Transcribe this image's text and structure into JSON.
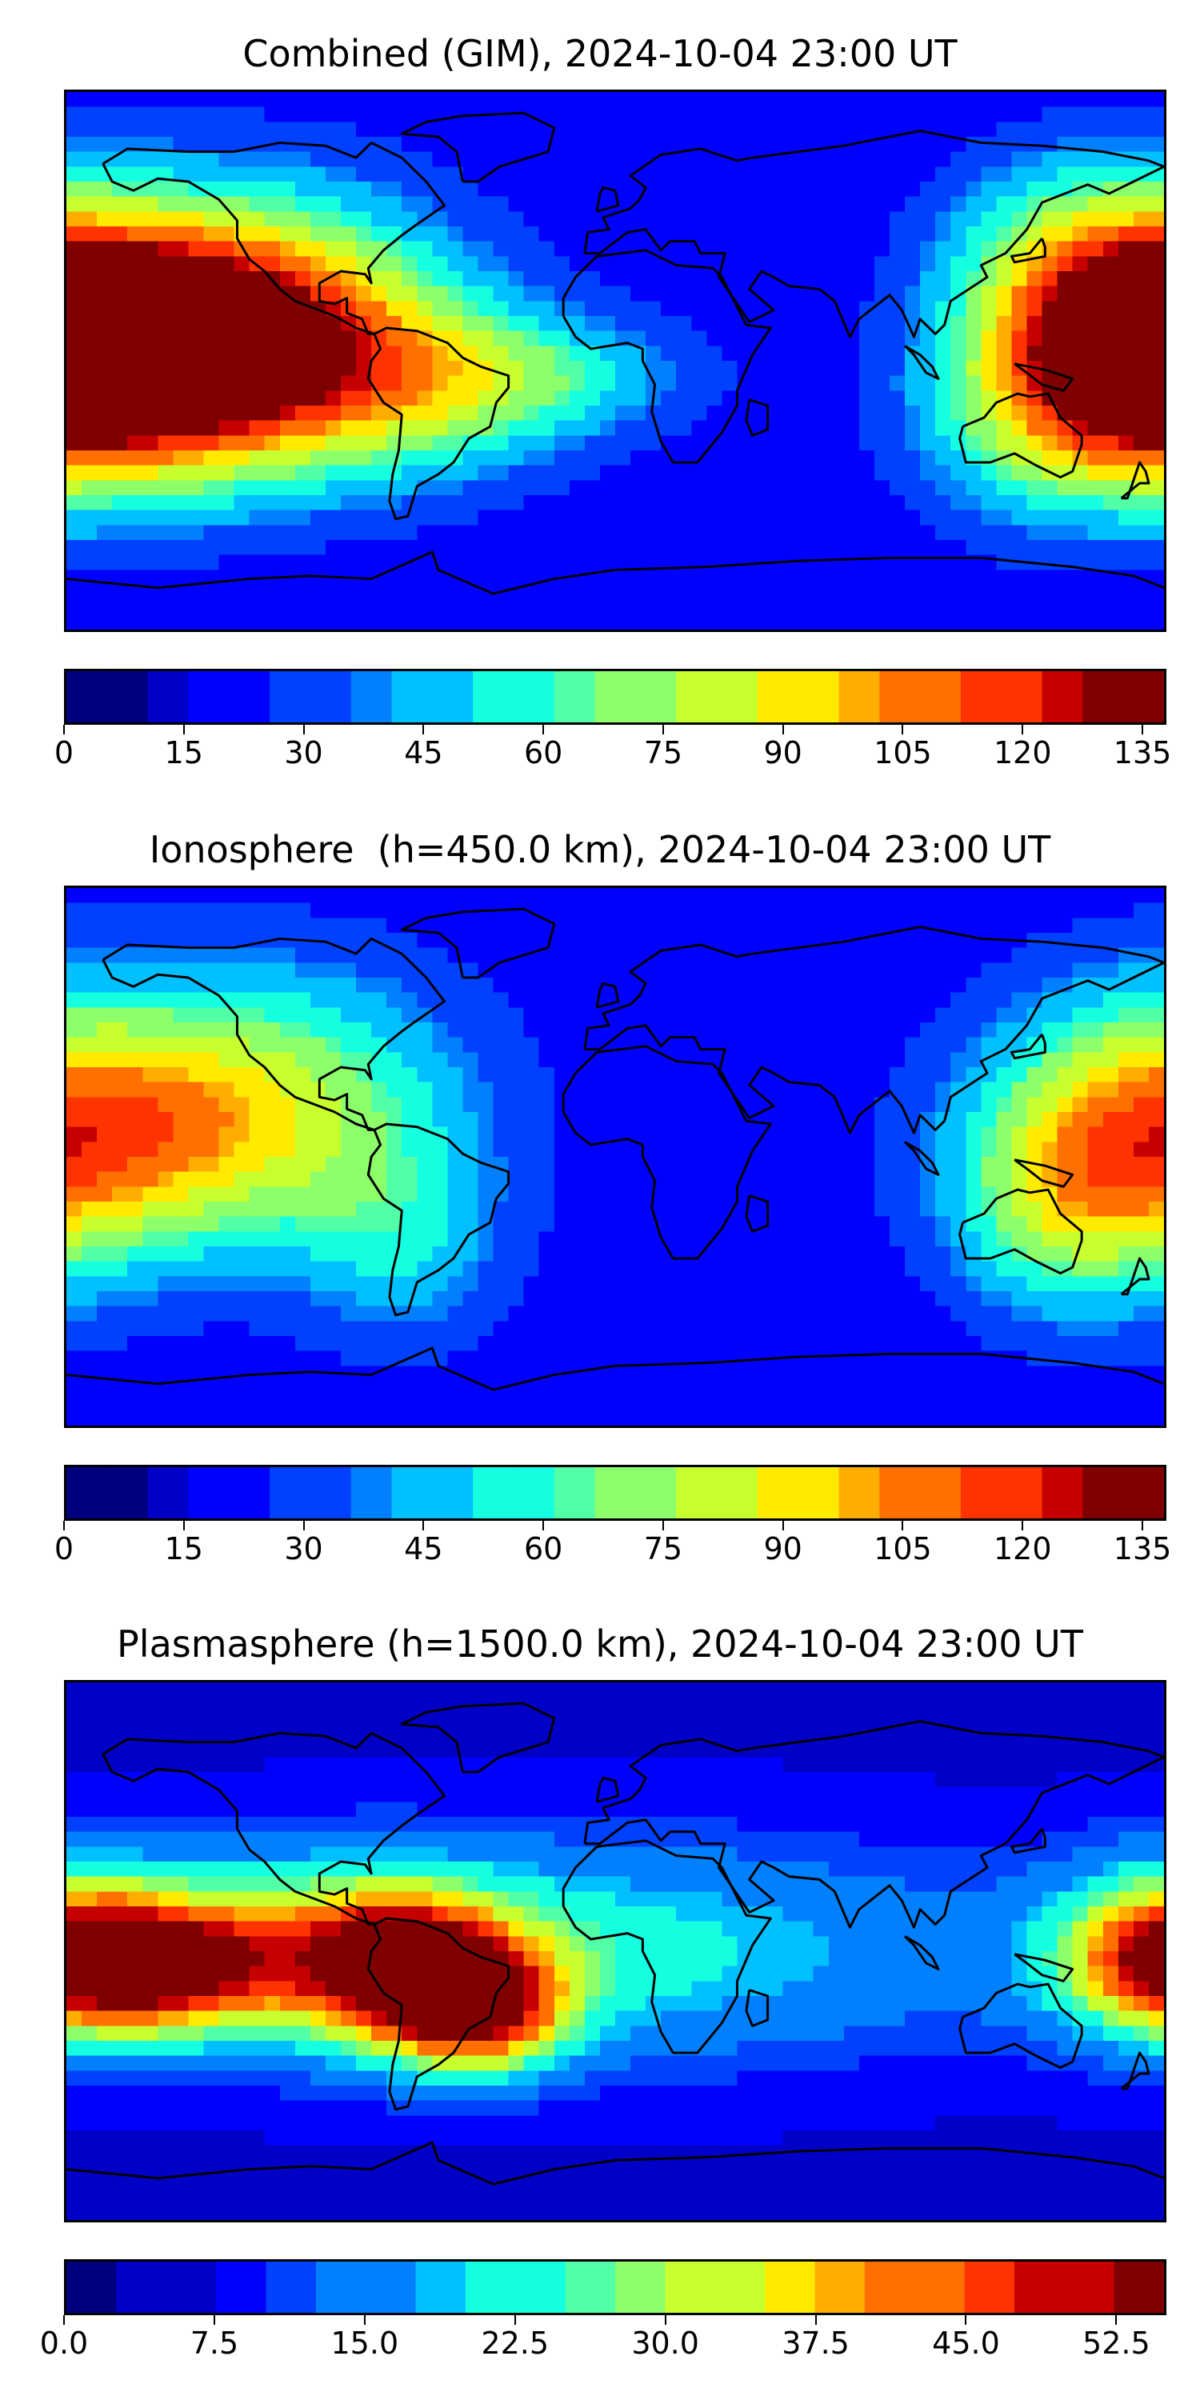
{
  "colormap": [
    "#00007f",
    "#0000c6",
    "#0000ff",
    "#0040ff",
    "#0080ff",
    "#00c0ff",
    "#15ffe1",
    "#50ffa6",
    "#8dff6a",
    "#c8ff2e",
    "#ffea00",
    "#ffad00",
    "#ff7000",
    "#ff3300",
    "#c60000",
    "#7f0000"
  ],
  "coastline_color": "#000000",
  "chart_data": [
    {
      "type": "heatmap",
      "title": "Combined (GIM), 2024-10-04 23:00 UT",
      "quantity_range": [
        0,
        138
      ],
      "colorbar_ticks": [
        "0",
        "15",
        "30",
        "45",
        "60",
        "75",
        "90",
        "105",
        "120",
        "135"
      ],
      "colorbar_tick_values": [
        0,
        15,
        30,
        45,
        60,
        75,
        90,
        105,
        120,
        135
      ],
      "colorbar_levels": 27,
      "background_value": 18,
      "features": [
        {
          "lon": -140,
          "lat": 0,
          "value": 130,
          "spread_lon": 48,
          "spread_lat": 28
        },
        {
          "lon": 175,
          "lat": 5,
          "value": 115,
          "spread_lon": 35,
          "spread_lat": 30
        },
        {
          "lon": -120,
          "lat": 20,
          "value": 75,
          "spread_lon": 45,
          "spread_lat": 30
        },
        {
          "lon": -60,
          "lat": -10,
          "value": 55,
          "spread_lon": 35,
          "spread_lat": 22
        },
        {
          "lon": -20,
          "lat": -5,
          "value": 48,
          "spread_lon": 35,
          "spread_lat": 14
        },
        {
          "lon": 140,
          "lat": -20,
          "value": 55,
          "spread_lon": 30,
          "spread_lat": 25
        },
        {
          "lon": 150,
          "lat": 35,
          "value": 55,
          "spread_lon": 30,
          "spread_lat": 25
        },
        {
          "lon": 0,
          "lat": 0,
          "value": 18,
          "spread_lon": 240,
          "spread_lat": 90
        }
      ]
    },
    {
      "type": "heatmap",
      "title": "Ionosphere  (h=450.0 km), 2024-10-04 23:00 UT",
      "quantity_range": [
        0,
        138
      ],
      "colorbar_ticks": [
        "0",
        "15",
        "30",
        "45",
        "60",
        "75",
        "90",
        "105",
        "120",
        "135"
      ],
      "colorbar_tick_values": [
        0,
        15,
        30,
        45,
        60,
        75,
        90,
        105,
        120,
        135
      ],
      "colorbar_levels": 27,
      "background_value": 18,
      "features": [
        {
          "lon": -150,
          "lat": 5,
          "value": 82,
          "spread_lon": 55,
          "spread_lat": 28
        },
        {
          "lon": 170,
          "lat": 10,
          "value": 68,
          "spread_lon": 35,
          "spread_lat": 35
        },
        {
          "lon": -110,
          "lat": 30,
          "value": 52,
          "spread_lon": 45,
          "spread_lat": 30
        },
        {
          "lon": -70,
          "lat": -30,
          "value": 48,
          "spread_lon": 25,
          "spread_lat": 25
        },
        {
          "lon": 145,
          "lat": -20,
          "value": 52,
          "spread_lon": 25,
          "spread_lat": 25
        },
        {
          "lon": 0,
          "lat": 0,
          "value": 18,
          "spread_lon": 240,
          "spread_lat": 90
        }
      ]
    },
    {
      "type": "heatmap",
      "title": "Plasmasphere (h=1500.0 km), 2024-10-04 23:00 UT",
      "quantity_range": [
        0,
        55
      ],
      "colorbar_ticks": [
        "0.0",
        "7.5",
        "15.0",
        "22.5",
        "30.0",
        "37.5",
        "45.0",
        "52.5"
      ],
      "colorbar_tick_values": [
        0,
        7.5,
        15,
        22.5,
        30,
        37.5,
        45,
        52.5
      ],
      "colorbar_levels": 22,
      "background_value": 7,
      "features": [
        {
          "lon": -155,
          "lat": -5,
          "value": 48,
          "spread_lon": 30,
          "spread_lat": 14
        },
        {
          "lon": -70,
          "lat": -5,
          "value": 45,
          "spread_lon": 22,
          "spread_lat": 16
        },
        {
          "lon": -45,
          "lat": -20,
          "value": 48,
          "spread_lon": 20,
          "spread_lat": 14
        },
        {
          "lon": -100,
          "lat": 0,
          "value": 35,
          "spread_lon": 60,
          "spread_lat": 22
        },
        {
          "lon": 30,
          "lat": 0,
          "value": 20,
          "spread_lon": 70,
          "spread_lat": 25
        },
        {
          "lon": 180,
          "lat": 0,
          "value": 32,
          "spread_lon": 25,
          "spread_lat": 20
        },
        {
          "lon": 0,
          "lat": 0,
          "value": 7,
          "spread_lon": 240,
          "spread_lat": 90
        }
      ]
    }
  ]
}
